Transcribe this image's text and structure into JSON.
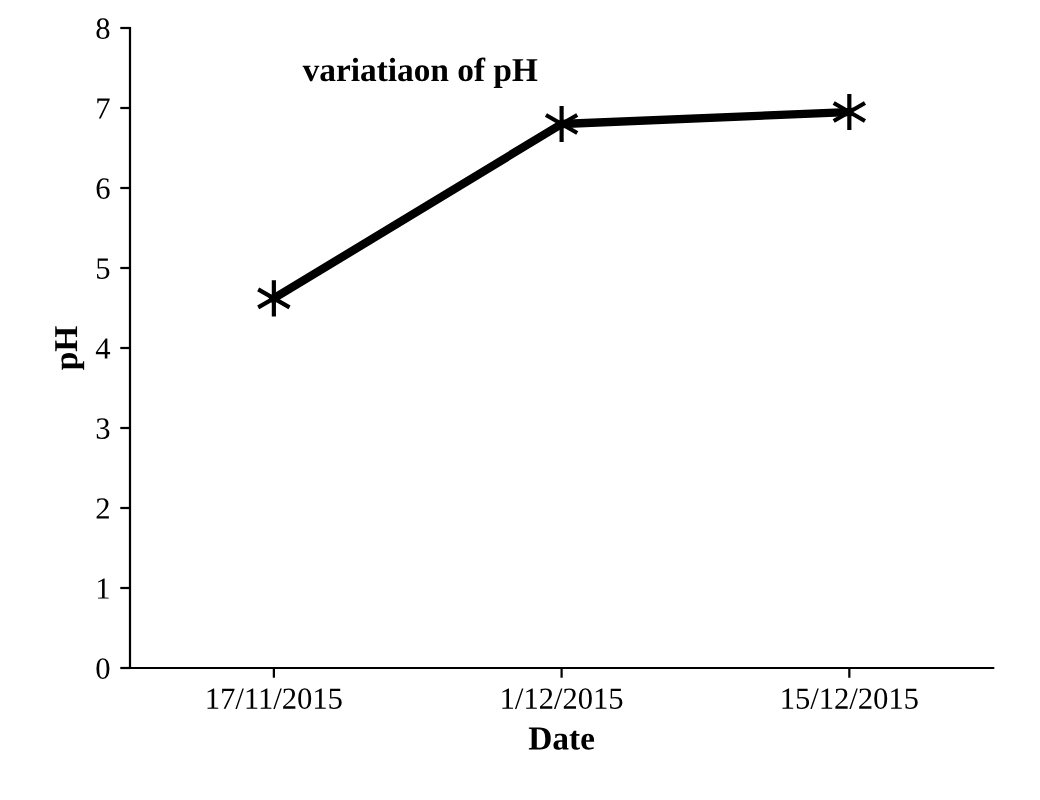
{
  "chart_data": {
    "type": "line",
    "title": "variatiaon of pH",
    "xlabel": "Date",
    "ylabel": "pH",
    "categories": [
      "17/11/2015",
      "1/12/2015",
      "15/12/2015"
    ],
    "series": [
      {
        "color": "#000000",
        "values": [
          4.62,
          6.8,
          6.95
        ]
      }
    ],
    "ylim": [
      0,
      8
    ],
    "yticks": [
      0,
      1,
      2,
      3,
      4,
      5,
      6,
      7,
      8
    ],
    "grid": false,
    "legend": false,
    "marker": "cross",
    "line_style": "solid"
  }
}
